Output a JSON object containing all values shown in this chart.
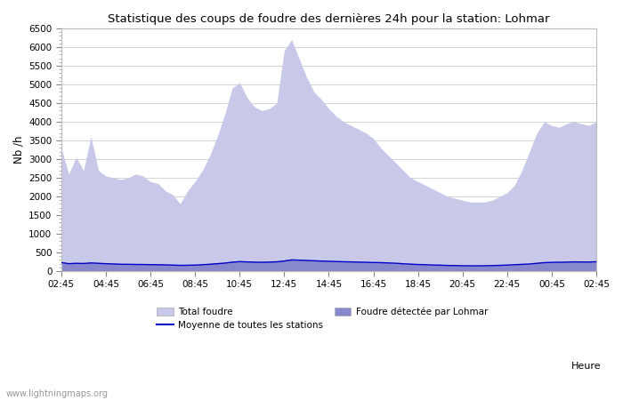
{
  "title": "Statistique des coups de foudre des dernières 24h pour la station: Lohmar",
  "xlabel": "Heure",
  "ylabel": "Nb /h",
  "watermark": "www.lightningmaps.org",
  "ylim": [
    0,
    6500
  ],
  "yticks": [
    0,
    500,
    1000,
    1500,
    2000,
    2500,
    3000,
    3500,
    4000,
    4500,
    5000,
    5500,
    6000,
    6500
  ],
  "xtick_labels": [
    "02:45",
    "04:45",
    "06:45",
    "08:45",
    "10:45",
    "12:45",
    "14:45",
    "16:45",
    "18:45",
    "20:45",
    "22:45",
    "00:45",
    "02:45"
  ],
  "total_foudre": [
    3300,
    2600,
    3050,
    2700,
    3600,
    2700,
    2550,
    2500,
    2450,
    2500,
    2600,
    2550,
    2400,
    2350,
    2150,
    2050,
    1800,
    2150,
    2400,
    2700,
    3100,
    3600,
    4200,
    4900,
    5050,
    4650,
    4400,
    4300,
    4350,
    4500,
    5900,
    6200,
    5700,
    5200,
    4800,
    4600,
    4350,
    4150,
    4000,
    3900,
    3800,
    3700,
    3550,
    3300,
    3100,
    2900,
    2700,
    2500,
    2400,
    2300,
    2200,
    2100,
    2000,
    1950,
    1900,
    1850,
    1850,
    1850,
    1900,
    2000,
    2100,
    2300,
    2700,
    3200,
    3700,
    4000,
    3900,
    3850,
    3950,
    4000,
    3950,
    3900,
    4000
  ],
  "lohmar": [
    250,
    220,
    230,
    220,
    240,
    230,
    220,
    210,
    200,
    200,
    195,
    195,
    190,
    185,
    180,
    175,
    165,
    170,
    175,
    185,
    200,
    220,
    240,
    260,
    280,
    270,
    260,
    255,
    260,
    270,
    300,
    330,
    320,
    310,
    300,
    295,
    285,
    275,
    270,
    265,
    255,
    250,
    240,
    235,
    225,
    215,
    200,
    190,
    180,
    175,
    170,
    165,
    158,
    155,
    150,
    148,
    148,
    150,
    155,
    160,
    170,
    180,
    190,
    200,
    220,
    240,
    245,
    245,
    250,
    255,
    250,
    250,
    260
  ],
  "moyenne": [
    230,
    200,
    210,
    205,
    220,
    210,
    200,
    192,
    185,
    183,
    180,
    178,
    175,
    172,
    168,
    162,
    155,
    158,
    162,
    172,
    185,
    200,
    215,
    240,
    255,
    248,
    240,
    238,
    242,
    250,
    270,
    300,
    295,
    285,
    278,
    270,
    265,
    258,
    252,
    248,
    242,
    238,
    232,
    228,
    220,
    212,
    198,
    188,
    178,
    172,
    165,
    160,
    153,
    150,
    145,
    143,
    143,
    145,
    150,
    155,
    163,
    172,
    182,
    192,
    210,
    228,
    236,
    238,
    242,
    248,
    245,
    245,
    252
  ],
  "color_total": "#c8c8e8",
  "color_lohmar": "#8888cc",
  "color_moyenne": "#0000cc",
  "legend_total": "Total foudre",
  "legend_lohmar": "Foudre détectée par Lohmar",
  "legend_moyenne": "Moyenne de toutes les stations",
  "background_plot": "#ffffff",
  "background_fig": "#ffffff",
  "grid_color": "#cccccc"
}
